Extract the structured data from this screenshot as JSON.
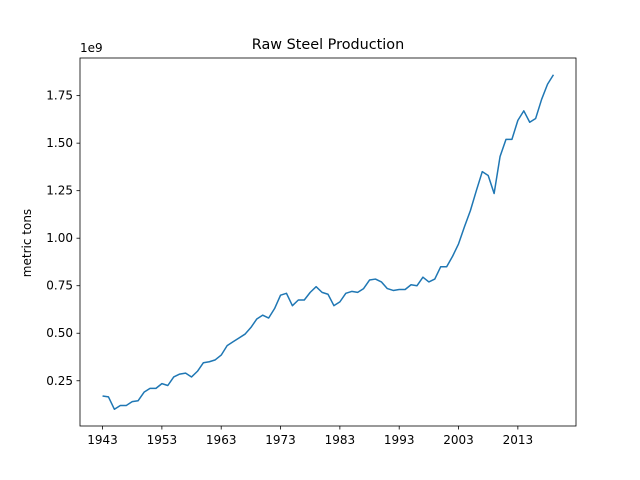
{
  "chart_data": {
    "type": "line",
    "title": "Raw Steel Production",
    "ylabel": "metric tons",
    "y_offset_label": "1e9",
    "x": [
      1943,
      1944,
      1945,
      1946,
      1947,
      1948,
      1949,
      1950,
      1951,
      1952,
      1953,
      1954,
      1955,
      1956,
      1957,
      1958,
      1959,
      1960,
      1961,
      1962,
      1963,
      1964,
      1965,
      1966,
      1967,
      1968,
      1969,
      1970,
      1971,
      1972,
      1973,
      1974,
      1975,
      1976,
      1977,
      1978,
      1979,
      1980,
      1981,
      1982,
      1983,
      1984,
      1985,
      1986,
      1987,
      1988,
      1989,
      1990,
      1991,
      1992,
      1993,
      1994,
      1995,
      1996,
      1997,
      1998,
      1999,
      2000,
      2001,
      2002,
      2003,
      2004,
      2005,
      2006,
      2007,
      2008,
      2009,
      2010,
      2011,
      2012,
      2013,
      2014,
      2015,
      2016,
      2017,
      2018,
      2019
    ],
    "values": [
      0.17,
      0.165,
      0.1,
      0.12,
      0.12,
      0.14,
      0.145,
      0.19,
      0.21,
      0.21,
      0.235,
      0.225,
      0.27,
      0.285,
      0.29,
      0.27,
      0.3,
      0.345,
      0.35,
      0.36,
      0.385,
      0.435,
      0.455,
      0.475,
      0.495,
      0.53,
      0.575,
      0.595,
      0.58,
      0.63,
      0.7,
      0.71,
      0.645,
      0.675,
      0.675,
      0.715,
      0.745,
      0.715,
      0.705,
      0.645,
      0.665,
      0.71,
      0.72,
      0.715,
      0.735,
      0.78,
      0.785,
      0.77,
      0.735,
      0.725,
      0.73,
      0.73,
      0.755,
      0.75,
      0.795,
      0.77,
      0.785,
      0.85,
      0.85,
      0.905,
      0.97,
      1.06,
      1.145,
      1.25,
      1.35,
      1.33,
      1.235,
      1.43,
      1.52,
      1.52,
      1.62,
      1.67,
      1.61,
      1.63,
      1.73,
      1.81,
      1.86
    ],
    "color": "#1f77b4",
    "xlim": [
      1939.2,
      2022.8
    ],
    "xticks": [
      1943,
      1953,
      1963,
      1973,
      1983,
      1993,
      2003,
      2013
    ],
    "ylim": [
      0.012,
      1.948
    ],
    "yticks": [
      0.25,
      {
        "value": 0.5,
        "label": "0.50"
      },
      0.75,
      {
        "value": 1.0,
        "label": "1.00"
      },
      1.25,
      {
        "value": 1.5,
        "label": "1.50"
      },
      1.75
    ]
  }
}
